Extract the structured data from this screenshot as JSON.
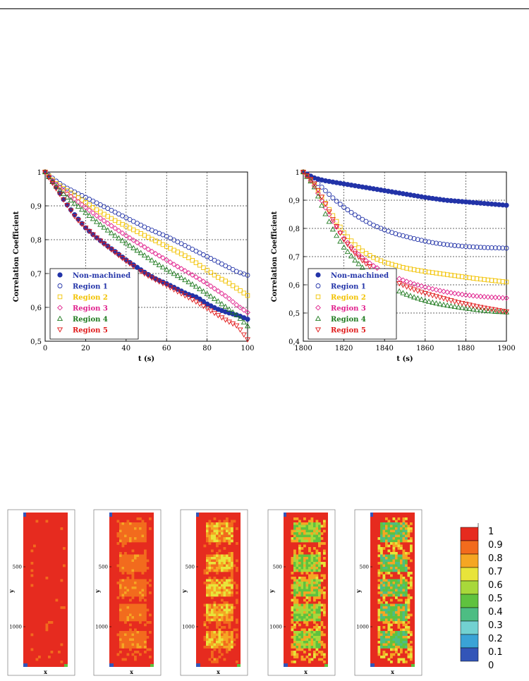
{
  "chart_data": [
    {
      "type": "scatter",
      "xlabel": "t (s)",
      "ylabel": "Correlation Coefficient",
      "xlim": [
        0,
        100
      ],
      "ylim": [
        0.5,
        1
      ],
      "xticks": [
        "0",
        "20",
        "40",
        "60",
        "80",
        "100"
      ],
      "yticks": [
        "0,5",
        "0,6",
        "0,7",
        "0,8",
        "0,9",
        "1"
      ],
      "grid": true,
      "legend_position": "bottom-left",
      "series": [
        {
          "name": "Non-machined",
          "color": "#2233a8",
          "marker": "filled-circle",
          "x": [
            0,
            5,
            10,
            15,
            20,
            25,
            30,
            35,
            40,
            45,
            50,
            55,
            60,
            65,
            70,
            75,
            80,
            85,
            90,
            95,
            100
          ],
          "y": [
            1.0,
            0.96,
            0.91,
            0.87,
            0.835,
            0.808,
            0.785,
            0.763,
            0.74,
            0.72,
            0.7,
            0.683,
            0.67,
            0.655,
            0.64,
            0.63,
            0.61,
            0.595,
            0.585,
            0.577,
            0.565
          ]
        },
        {
          "name": "Region 1",
          "color": "#2233a8",
          "marker": "open-circle",
          "x": [
            0,
            5,
            10,
            15,
            20,
            25,
            30,
            35,
            40,
            45,
            50,
            55,
            60,
            65,
            70,
            75,
            80,
            85,
            90,
            95,
            100
          ],
          "y": [
            1.0,
            0.975,
            0.955,
            0.94,
            0.925,
            0.91,
            0.895,
            0.88,
            0.865,
            0.85,
            0.835,
            0.822,
            0.81,
            0.795,
            0.78,
            0.765,
            0.75,
            0.735,
            0.72,
            0.705,
            0.695
          ]
        },
        {
          "name": "Region 2",
          "color": "#f2c200",
          "marker": "open-square",
          "x": [
            0,
            5,
            10,
            15,
            20,
            25,
            30,
            35,
            40,
            45,
            50,
            55,
            60,
            65,
            70,
            75,
            80,
            85,
            90,
            95,
            100
          ],
          "y": [
            1.0,
            0.968,
            0.948,
            0.93,
            0.91,
            0.89,
            0.872,
            0.855,
            0.84,
            0.825,
            0.81,
            0.795,
            0.78,
            0.765,
            0.75,
            0.73,
            0.71,
            0.69,
            0.675,
            0.655,
            0.635
          ]
        },
        {
          "name": "Region 3",
          "color": "#e0208c",
          "marker": "open-diamond",
          "x": [
            0,
            5,
            10,
            15,
            20,
            25,
            30,
            35,
            40,
            45,
            50,
            55,
            60,
            65,
            70,
            75,
            80,
            85,
            90,
            95,
            100
          ],
          "y": [
            1.0,
            0.965,
            0.94,
            0.918,
            0.895,
            0.873,
            0.852,
            0.832,
            0.812,
            0.793,
            0.775,
            0.757,
            0.74,
            0.722,
            0.705,
            0.688,
            0.67,
            0.65,
            0.63,
            0.605,
            0.585
          ]
        },
        {
          "name": "Region 4",
          "color": "#1f7a1f",
          "marker": "open-triangle-up",
          "x": [
            0,
            5,
            10,
            15,
            20,
            25,
            30,
            35,
            40,
            45,
            50,
            55,
            60,
            65,
            70,
            75,
            80,
            85,
            90,
            95,
            100
          ],
          "y": [
            1.0,
            0.96,
            0.93,
            0.905,
            0.88,
            0.855,
            0.832,
            0.81,
            0.79,
            0.77,
            0.75,
            0.73,
            0.712,
            0.695,
            0.678,
            0.66,
            0.64,
            0.62,
            0.598,
            0.575,
            0.545
          ]
        },
        {
          "name": "Region 5",
          "color": "#e01818",
          "marker": "open-triangle-down",
          "x": [
            0,
            5,
            10,
            15,
            20,
            25,
            30,
            35,
            40,
            45,
            50,
            55,
            60,
            65,
            70,
            75,
            80,
            85,
            90,
            95,
            100
          ],
          "y": [
            1.0,
            0.955,
            0.91,
            0.865,
            0.835,
            0.808,
            0.783,
            0.76,
            0.737,
            0.715,
            0.696,
            0.68,
            0.665,
            0.648,
            0.632,
            0.615,
            0.597,
            0.578,
            0.56,
            0.545,
            0.505
          ]
        }
      ]
    },
    {
      "type": "scatter",
      "xlabel": "t (s)",
      "ylabel": "Correlation Coefficient",
      "xlim": [
        1800,
        1900
      ],
      "ylim": [
        0.4,
        1
      ],
      "xticks": [
        "1800",
        "1820",
        "1840",
        "1860",
        "1880",
        "1900"
      ],
      "yticks": [
        "0,4",
        "0,5",
        "0,6",
        "0,7",
        "0,8",
        "0,9",
        "1"
      ],
      "grid": true,
      "legend_position": "bottom-left",
      "series": [
        {
          "name": "Non-machined",
          "color": "#2233a8",
          "marker": "filled-circle",
          "x": [
            1800,
            1805,
            1810,
            1815,
            1820,
            1825,
            1830,
            1835,
            1840,
            1845,
            1850,
            1855,
            1860,
            1865,
            1870,
            1875,
            1880,
            1885,
            1890,
            1895,
            1900
          ],
          "y": [
            1.0,
            0.98,
            0.97,
            0.964,
            0.958,
            0.952,
            0.946,
            0.94,
            0.934,
            0.928,
            0.922,
            0.916,
            0.91,
            0.905,
            0.9,
            0.897,
            0.894,
            0.891,
            0.888,
            0.885,
            0.882
          ]
        },
        {
          "name": "Region 1",
          "color": "#2233a8",
          "marker": "open-circle",
          "x": [
            1800,
            1805,
            1810,
            1815,
            1820,
            1825,
            1830,
            1835,
            1840,
            1845,
            1850,
            1855,
            1860,
            1865,
            1870,
            1875,
            1880,
            1885,
            1890,
            1895,
            1900
          ],
          "y": [
            1.0,
            0.975,
            0.94,
            0.905,
            0.875,
            0.85,
            0.828,
            0.81,
            0.795,
            0.782,
            0.772,
            0.763,
            0.755,
            0.748,
            0.743,
            0.739,
            0.736,
            0.734,
            0.732,
            0.731,
            0.73
          ]
        },
        {
          "name": "Region 2",
          "color": "#f2c200",
          "marker": "open-square",
          "x": [
            1800,
            1805,
            1810,
            1815,
            1820,
            1825,
            1830,
            1835,
            1840,
            1845,
            1850,
            1855,
            1860,
            1865,
            1870,
            1875,
            1880,
            1885,
            1890,
            1895,
            1900
          ],
          "y": [
            1.0,
            0.96,
            0.9,
            0.84,
            0.785,
            0.745,
            0.715,
            0.695,
            0.68,
            0.67,
            0.66,
            0.653,
            0.647,
            0.642,
            0.637,
            0.632,
            0.627,
            0.622,
            0.618,
            0.614,
            0.61
          ]
        },
        {
          "name": "Region 3",
          "color": "#e0208c",
          "marker": "open-diamond",
          "x": [
            1800,
            1805,
            1810,
            1815,
            1820,
            1825,
            1830,
            1835,
            1840,
            1845,
            1850,
            1855,
            1860,
            1865,
            1870,
            1875,
            1880,
            1885,
            1890,
            1895,
            1900
          ],
          "y": [
            1.0,
            0.958,
            0.885,
            0.82,
            0.765,
            0.722,
            0.69,
            0.665,
            0.645,
            0.628,
            0.614,
            0.602,
            0.592,
            0.583,
            0.575,
            0.569,
            0.564,
            0.56,
            0.557,
            0.555,
            0.553
          ]
        },
        {
          "name": "Region 4",
          "color": "#1f7a1f",
          "marker": "open-triangle-up",
          "x": [
            1800,
            1805,
            1810,
            1815,
            1820,
            1825,
            1830,
            1835,
            1840,
            1845,
            1850,
            1855,
            1860,
            1865,
            1870,
            1875,
            1880,
            1885,
            1890,
            1895,
            1900
          ],
          "y": [
            1.0,
            0.955,
            0.865,
            0.79,
            0.733,
            0.69,
            0.655,
            0.628,
            0.605,
            0.585,
            0.568,
            0.555,
            0.544,
            0.535,
            0.528,
            0.522,
            0.517,
            0.512,
            0.508,
            0.505,
            0.503
          ]
        },
        {
          "name": "Region 5",
          "color": "#e01818",
          "marker": "open-triangle-down",
          "x": [
            1800,
            1805,
            1810,
            1815,
            1820,
            1825,
            1830,
            1835,
            1840,
            1845,
            1850,
            1855,
            1860,
            1865,
            1870,
            1875,
            1880,
            1885,
            1890,
            1895,
            1900
          ],
          "y": [
            1.0,
            0.965,
            0.9,
            0.825,
            0.76,
            0.715,
            0.68,
            0.652,
            0.63,
            0.612,
            0.596,
            0.582,
            0.57,
            0.56,
            0.55,
            0.54,
            0.532,
            0.524,
            0.517,
            0.511,
            0.505
          ]
        }
      ]
    },
    {
      "type": "heatmap",
      "panels": 5,
      "xlabel": "x",
      "ylabel": "y",
      "yticks": [
        "500",
        "1000"
      ],
      "panel_patch_levels": [
        0.0,
        0.25,
        0.45,
        0.85,
        1.0
      ],
      "colorbar": {
        "labels": [
          "1",
          "0.9",
          "0.8",
          "0.7",
          "0.6",
          "0.5",
          "0.4",
          "0.3",
          "0.2",
          "0.1",
          "0"
        ],
        "colors": [
          "#e62b1f",
          "#f26b1d",
          "#f5a623",
          "#e8e43a",
          "#a8d83a",
          "#5fc23f",
          "#4dbd83",
          "#72d1d1",
          "#3aa3d6",
          "#3355b8",
          "#2a3c9c"
        ]
      }
    }
  ]
}
